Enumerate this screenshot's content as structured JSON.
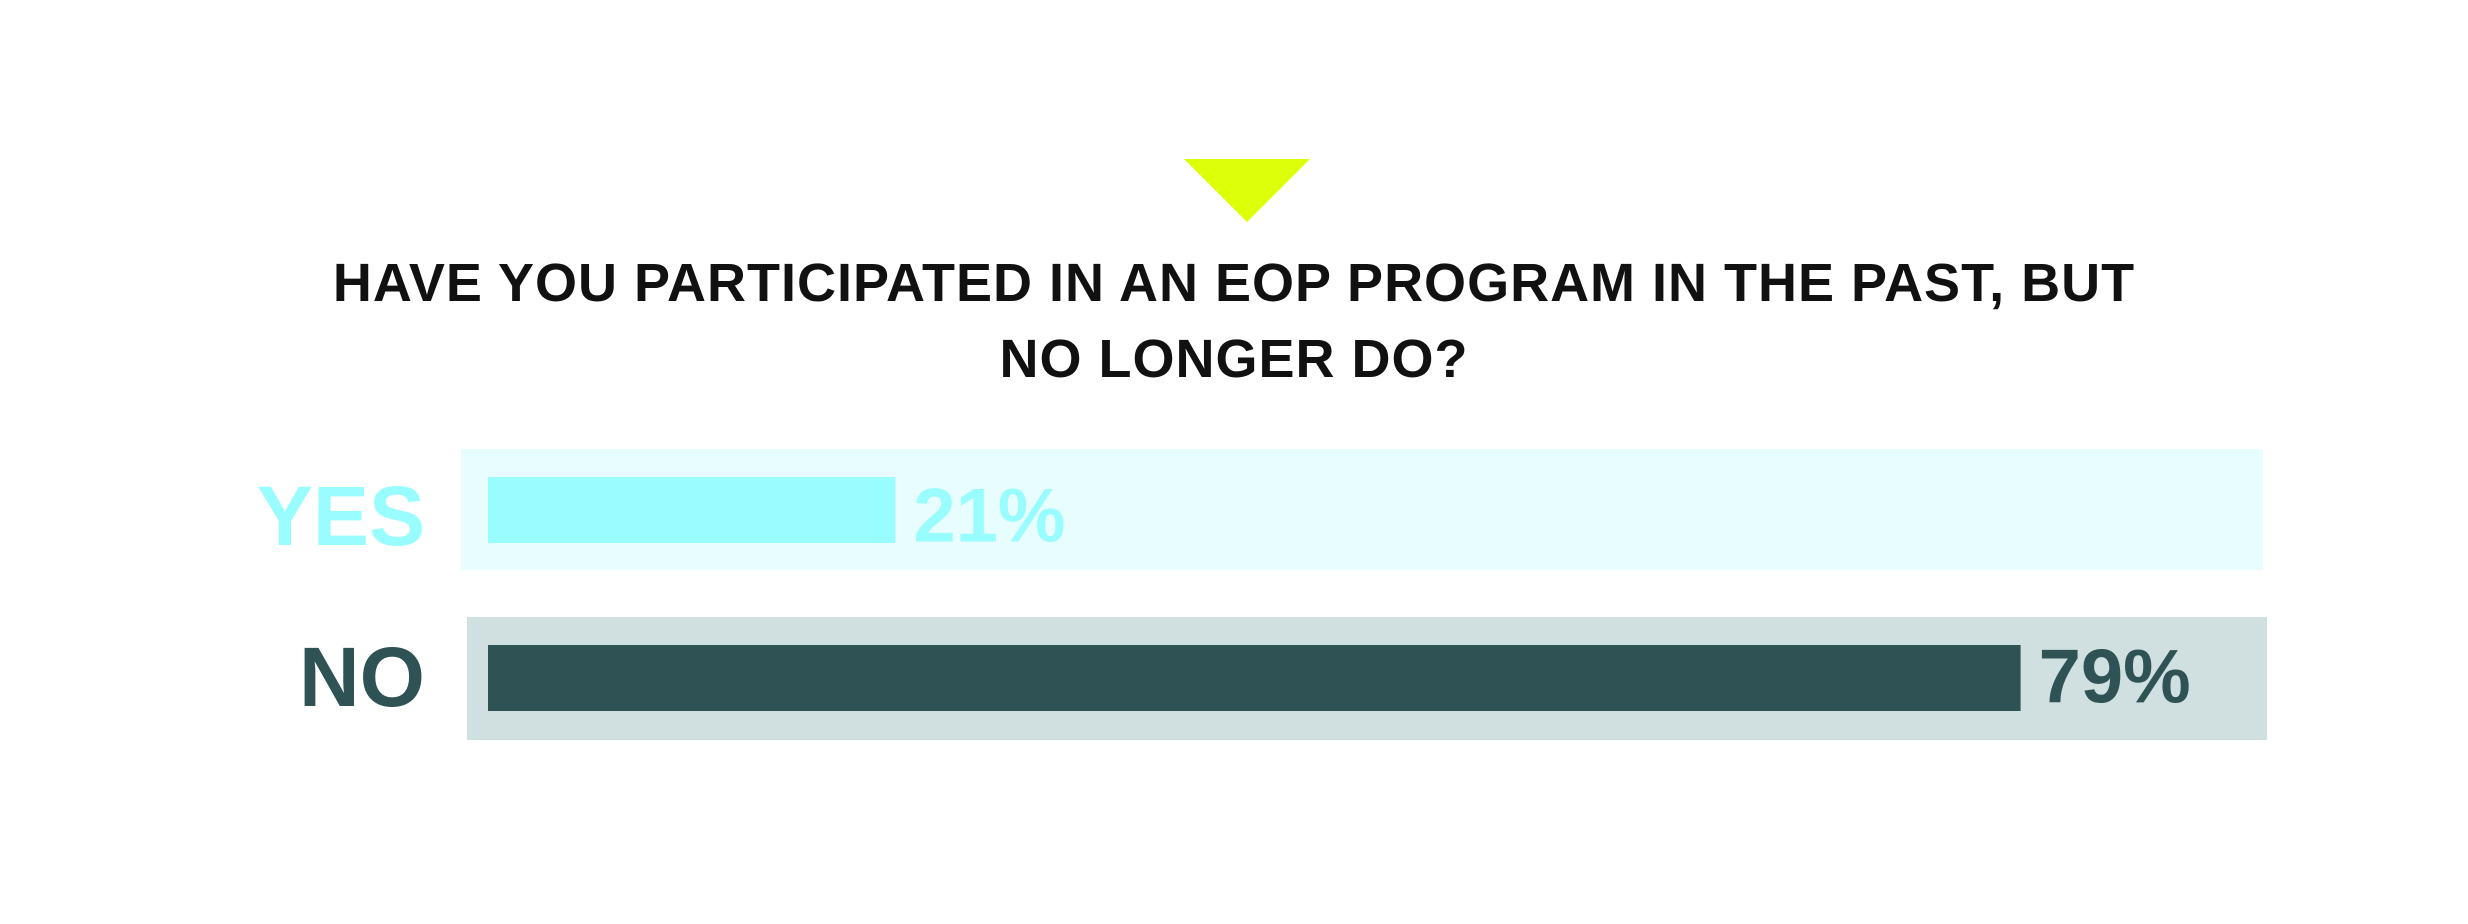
{
  "chart_data": {
    "type": "bar",
    "orientation": "horizontal",
    "title": "HAVE YOU PARTICIPATED IN AN EOP PROGRAM IN THE PAST, BUT NO LONGER DO?",
    "categories": [
      "YES",
      "NO"
    ],
    "values": [
      21,
      79
    ],
    "value_labels": [
      "21%",
      "79%"
    ],
    "colors": [
      "#99fcff",
      "#2f5254"
    ],
    "track_colors": [
      "#e8fdfd",
      "#d0e0e0"
    ],
    "title_color": "#111111",
    "accent_color": "#ddff0a"
  }
}
